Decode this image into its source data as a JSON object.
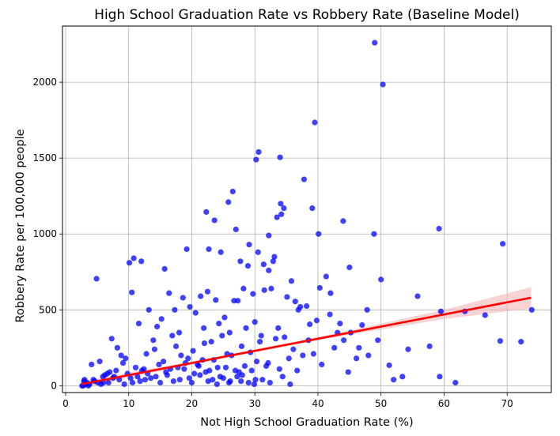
{
  "chart_data": {
    "type": "scatter",
    "title": "High School Graduation Rate vs Robbery Rate (Baseline Model)",
    "xlabel": "Not High School Graduation Rate (%)",
    "ylabel": "Robbery Rate per 100,000 people",
    "xlim": [
      -0.5,
      77
    ],
    "ylim": [
      -45,
      2370
    ],
    "xticks": [
      0,
      10,
      20,
      30,
      40,
      50,
      60,
      70
    ],
    "yticks": [
      0,
      500,
      1000,
      1500,
      2000
    ],
    "grid": true,
    "colors": {
      "points": "#0000ff",
      "fit_line": "#ff0000",
      "confidence_band": "#f4b5b5"
    },
    "series": [
      {
        "kind": "points",
        "x": [
          49.0,
          50.3,
          39.5,
          30.6,
          34.0,
          30.2,
          37.8,
          25.8,
          26.5,
          22.3,
          34.6,
          27.0,
          34.1,
          39.1,
          34.2,
          32.2,
          33.5,
          44.0,
          29.1,
          23.6,
          59.2,
          69.3,
          48.9,
          40.1,
          30.5,
          33.1,
          32.9,
          24.6,
          31.4,
          27.7,
          28.9,
          22.7,
          32.2,
          4.9,
          15.7,
          19.2,
          12.0,
          10.1,
          10.8,
          35.8,
          41.3,
          45.0,
          40.3,
          42.0,
          50.0,
          47.8,
          43.5,
          38.7,
          55.8,
          63.3,
          66.5,
          59.5,
          73.9,
          57.7,
          68.9,
          72.2,
          59.3,
          61.8,
          52.0,
          51.3,
          53.4,
          54.3,
          49.5,
          47.0,
          45.2,
          44.1,
          46.5,
          48.0,
          10.5,
          13.2,
          16.4,
          18.6,
          21.4,
          22.5,
          23.8,
          26.7,
          28.2,
          29.7,
          31.5,
          35.1,
          36.4,
          37.2,
          38.2,
          5.4,
          7.3,
          8.2,
          9.5,
          11.6,
          12.8,
          14.5,
          15.2,
          17.3,
          18.0,
          19.7,
          20.6,
          21.9,
          24.3,
          25.2,
          27.3,
          30.0,
          32.6,
          33.7,
          36.9,
          39.8,
          41.9,
          43.1,
          3.0,
          4.1,
          6.6,
          8.8,
          13.9,
          16.9,
          20.2,
          23.1,
          26.0,
          28.6,
          31.0,
          34.7,
          38.5,
          42.6,
          46.1,
          3.4,
          5.9,
          9.1,
          11.1,
          14.1,
          17.5,
          19.4,
          22.0,
          24.8,
          27.9,
          30.8,
          33.3,
          36.1,
          39.3,
          44.8,
          2.8,
          4.6,
          7.0,
          10.3,
          12.4,
          15.5,
          18.3,
          21.1,
          23.5,
          25.6,
          29.3,
          32.1,
          35.4,
          37.6,
          40.6,
          3.8,
          6.2,
          8.5,
          12.1,
          14.8,
          16.6,
          19.0,
          21.7,
          24.1,
          26.3,
          28.4,
          30.3,
          33.9,
          36.7,
          2.6,
          5.1,
          7.7,
          9.8,
          13.5,
          15.9,
          18.8,
          20.9,
          22.8,
          25.4,
          27.5,
          29.5,
          31.8,
          34.4,
          3.2,
          4.4,
          6.8,
          8.0,
          11.4,
          13.0,
          16.1,
          17.8,
          20.4,
          22.2,
          24.5,
          26.9,
          28.0,
          30.1,
          2.9,
          5.6,
          7.5,
          10.6,
          12.6,
          14.3,
          17.1,
          19.6,
          21.3,
          23.3,
          25.0,
          26.1,
          27.2,
          29.0,
          31.2,
          3.6,
          6.0,
          9.3,
          11.8,
          15.0,
          18.1,
          20.0,
          22.6,
          24.0,
          25.9,
          27.8,
          29.9,
          32.4,
          35.6
        ],
        "y": [
          2260,
          1985,
          1735,
          1540,
          1505,
          1490,
          1360,
          1210,
          1280,
          1145,
          1170,
          1030,
          1200,
          1170,
          1130,
          990,
          1110,
          1085,
          930,
          1090,
          1035,
          935,
          1000,
          1000,
          880,
          850,
          820,
          880,
          800,
          820,
          790,
          900,
          760,
          705,
          770,
          900,
          820,
          810,
          840,
          690,
          720,
          780,
          645,
          610,
          700,
          500,
          410,
          405,
          590,
          490,
          465,
          490,
          500,
          260,
          295,
          290,
          60,
          20,
          40,
          135,
          60,
          240,
          300,
          400,
          350,
          300,
          250,
          200,
          615,
          500,
          610,
          580,
          590,
          620,
          565,
          560,
          640,
          605,
          630,
          585,
          555,
          520,
          525,
          160,
          310,
          250,
          180,
          410,
          210,
          390,
          440,
          500,
          350,
          520,
          480,
          380,
          410,
          450,
          560,
          420,
          640,
          380,
          500,
          430,
          470,
          350,
          40,
          140,
          80,
          200,
          300,
          330,
          230,
          290,
          350,
          380,
          330,
          320,
          300,
          250,
          180,
          20,
          60,
          150,
          120,
          240,
          260,
          180,
          280,
          330,
          260,
          290,
          310,
          240,
          210,
          90,
          0,
          30,
          90,
          50,
          110,
          160,
          200,
          130,
          170,
          210,
          220,
          150,
          180,
          200,
          140,
          10,
          70,
          40,
          100,
          140,
          110,
          150,
          170,
          120,
          200,
          130,
          160,
          110,
          100,
          0,
          20,
          60,
          80,
          50,
          90,
          110,
          140,
          100,
          120,
          90,
          100,
          130,
          60,
          10,
          40,
          20,
          100,
          60,
          80,
          70,
          120,
          80,
          90,
          60,
          100,
          70,
          40,
          30,
          10,
          50,
          20,
          40,
          60,
          30,
          50,
          70,
          40,
          50,
          30,
          60,
          20,
          40,
          0,
          20,
          10,
          30,
          20,
          40,
          20,
          30,
          10,
          20,
          30,
          10,
          20,
          10
        ]
      },
      {
        "kind": "fit_line",
        "x": [
          2.5,
          73.8
        ],
        "y": [
          10,
          580
        ]
      },
      {
        "kind": "confidence_band",
        "x": [
          2.5,
          20,
          40,
          60,
          73.8
        ],
        "lower": [
          -10,
          140,
          300,
          440,
          510
        ],
        "upper": [
          30,
          160,
          320,
          500,
          650
        ]
      }
    ]
  }
}
